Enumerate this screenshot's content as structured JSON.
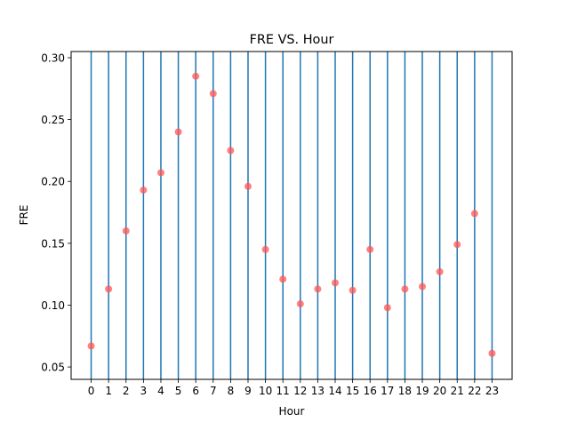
{
  "chart_data": {
    "type": "scatter",
    "title": "FRE VS. Hour",
    "xlabel": "Hour",
    "ylabel": "FRE",
    "x": [
      0,
      1,
      2,
      3,
      4,
      5,
      6,
      7,
      8,
      9,
      10,
      11,
      12,
      13,
      14,
      15,
      16,
      17,
      18,
      19,
      20,
      21,
      22,
      23
    ],
    "y": [
      0.067,
      0.113,
      0.16,
      0.193,
      0.207,
      0.24,
      0.285,
      0.271,
      0.225,
      0.196,
      0.145,
      0.121,
      0.101,
      0.113,
      0.118,
      0.112,
      0.145,
      0.098,
      0.113,
      0.115,
      0.127,
      0.149,
      0.174,
      0.061
    ],
    "xlim": [
      -1.15,
      24.15
    ],
    "ylim": [
      0.04,
      0.305
    ],
    "xticks": [
      "0",
      "1",
      "2",
      "3",
      "4",
      "5",
      "6",
      "7",
      "8",
      "9",
      "10",
      "11",
      "12",
      "13",
      "14",
      "15",
      "16",
      "17",
      "18",
      "19",
      "20",
      "21",
      "22",
      "23"
    ],
    "yticks": [
      "0.05",
      "0.10",
      "0.15",
      "0.20",
      "0.25",
      "0.30"
    ],
    "vertical_lines_at_each_hour": true,
    "grid": false,
    "colors": {
      "marker": "#ff5555",
      "vline": "#1f77b4"
    }
  }
}
